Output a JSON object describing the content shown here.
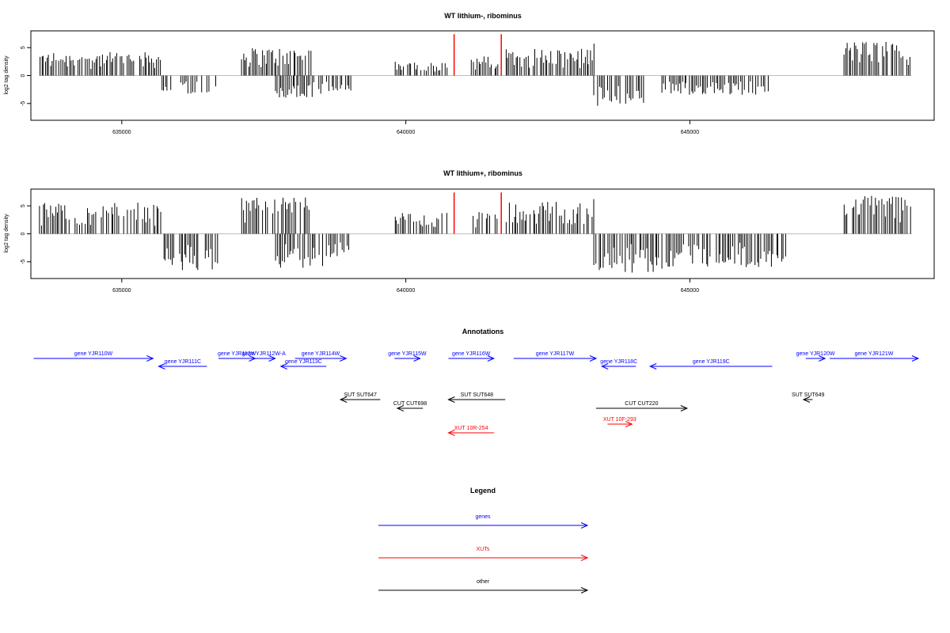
{
  "chart_data": [
    {
      "type": "bar",
      "title": "WT lithium-, ribominus",
      "ylabel": "log2 tag density",
      "xlabel": "",
      "xlim": [
        633400,
        649300
      ],
      "ylim": [
        -8,
        8
      ],
      "x_ticks": [
        "635000",
        "640000",
        "645000"
      ],
      "x_tick_values": [
        635000,
        640000,
        645000
      ],
      "y_ticks": [
        "-5",
        "0",
        "5"
      ],
      "y_tick_values": [
        -5,
        0,
        5
      ],
      "highlight_color": "#ff0000",
      "highlight_positions": [
        640850,
        641680
      ],
      "highlight_height": 7.4,
      "plus_strand_regions": [
        {
          "start": 633550,
          "end": 635700,
          "max": 4.2
        },
        {
          "start": 637100,
          "end": 638350,
          "max": 5.0
        },
        {
          "start": 639800,
          "end": 640750,
          "max": 2.5
        },
        {
          "start": 641150,
          "end": 641650,
          "max": 3.5
        },
        {
          "start": 641750,
          "end": 643300,
          "max": 4.8
        },
        {
          "start": 643300,
          "end": 643320,
          "max": 6.8
        },
        {
          "start": 647700,
          "end": 648900,
          "max": 6.2
        }
      ],
      "minus_strand_regions": [
        {
          "start": 635700,
          "end": 636700,
          "max": 3.5
        },
        {
          "start": 637700,
          "end": 638550,
          "max": 4.0
        },
        {
          "start": 638600,
          "end": 639050,
          "max": 3.0
        },
        {
          "start": 643300,
          "end": 644200,
          "max": 5.5
        },
        {
          "start": 644500,
          "end": 646400,
          "max": 3.5
        }
      ]
    },
    {
      "type": "bar",
      "title": "WT lithium+, ribominus",
      "ylabel": "log2 tag density",
      "xlabel": "",
      "xlim": [
        633400,
        649300
      ],
      "ylim": [
        -8,
        8
      ],
      "x_ticks": [
        "635000",
        "640000",
        "645000"
      ],
      "x_tick_values": [
        635000,
        640000,
        645000
      ],
      "y_ticks": [
        "-5",
        "0",
        "5"
      ],
      "y_tick_values": [
        -5,
        0,
        5
      ],
      "highlight_color": "#ff0000",
      "highlight_positions": [
        640850,
        641680
      ],
      "highlight_height": 7.4,
      "plus_strand_regions": [
        {
          "start": 633550,
          "end": 635700,
          "max": 5.6
        },
        {
          "start": 637100,
          "end": 638350,
          "max": 6.8
        },
        {
          "start": 639800,
          "end": 640750,
          "max": 3.8
        },
        {
          "start": 641150,
          "end": 641650,
          "max": 4.0
        },
        {
          "start": 641750,
          "end": 643300,
          "max": 5.8
        },
        {
          "start": 643300,
          "end": 643320,
          "max": 7.3
        },
        {
          "start": 647700,
          "end": 648900,
          "max": 7.0
        }
      ],
      "minus_strand_regions": [
        {
          "start": 635700,
          "end": 636700,
          "max": 6.5
        },
        {
          "start": 637700,
          "end": 638550,
          "max": 6.5
        },
        {
          "start": 638600,
          "end": 639050,
          "max": 4.5
        },
        {
          "start": 643300,
          "end": 644600,
          "max": 7.0
        },
        {
          "start": 644600,
          "end": 646700,
          "max": 6.0
        }
      ]
    }
  ],
  "annotations": {
    "title": "Annotations",
    "features": [
      {
        "label": "gene YJR110W",
        "start": 633450,
        "end": 635550,
        "direction": "right",
        "type": "gene",
        "lane": 0
      },
      {
        "label": "gene YJR111C",
        "start": 635650,
        "end": 636500,
        "direction": "left",
        "type": "gene",
        "lane": 1
      },
      {
        "label": "gene YJR112W",
        "start": 636700,
        "end": 637350,
        "direction": "right",
        "type": "gene",
        "lane": 0
      },
      {
        "label": "gene YJR112W-A",
        "start": 637300,
        "end": 637700,
        "direction": "right",
        "type": "gene",
        "lane": 0
      },
      {
        "label": "gene YJR113C",
        "start": 637800,
        "end": 638600,
        "direction": "left",
        "type": "gene",
        "lane": 1
      },
      {
        "label": "gene YJR114W",
        "start": 638050,
        "end": 638950,
        "direction": "right",
        "type": "gene",
        "lane": 0
      },
      {
        "label": "gene YJR115W",
        "start": 639800,
        "end": 640250,
        "direction": "right",
        "type": "gene",
        "lane": 0
      },
      {
        "label": "gene YJR116W",
        "start": 640750,
        "end": 641550,
        "direction": "right",
        "type": "gene",
        "lane": 0
      },
      {
        "label": "gene YJR117W",
        "start": 641900,
        "end": 643350,
        "direction": "right",
        "type": "gene",
        "lane": 0
      },
      {
        "label": "gene YJR118C",
        "start": 643450,
        "end": 644050,
        "direction": "left",
        "type": "gene",
        "lane": 1
      },
      {
        "label": "gene YJR119C",
        "start": 644300,
        "end": 646450,
        "direction": "left",
        "type": "gene",
        "lane": 1
      },
      {
        "label": "gene YJR120W",
        "start": 647040,
        "end": 647380,
        "direction": "right",
        "type": "gene",
        "lane": 0
      },
      {
        "label": "gene YJR121W",
        "start": 647460,
        "end": 649020,
        "direction": "right",
        "type": "gene",
        "lane": 0
      },
      {
        "label": "SUT SUT647",
        "start": 638850,
        "end": 639550,
        "direction": "left",
        "type": "other",
        "lane": 3
      },
      {
        "label": "SUT SUT648",
        "start": 640750,
        "end": 641750,
        "direction": "left",
        "type": "other",
        "lane": 3
      },
      {
        "label": "SUT SUT649",
        "start": 647000,
        "end": 647160,
        "direction": "left",
        "type": "other",
        "lane": 3
      },
      {
        "label": "CUT CUT698",
        "start": 639850,
        "end": 640300,
        "direction": "left",
        "type": "other",
        "lane": 4
      },
      {
        "label": "CUT CUT220",
        "start": 643350,
        "end": 644950,
        "direction": "right",
        "type": "other",
        "lane": 4
      },
      {
        "label": "XUT 10R-254",
        "start": 640750,
        "end": 641550,
        "direction": "left",
        "type": "xut",
        "lane": 6
      },
      {
        "label": "XUT 10F-293",
        "start": 643550,
        "end": 643980,
        "direction": "right",
        "type": "xut",
        "lane": 5
      }
    ]
  },
  "legend": {
    "title": "Legend",
    "items": [
      {
        "label": "genes",
        "color": "#0000ff"
      },
      {
        "label": "XUTs",
        "color": "#ff0000"
      },
      {
        "label": "other",
        "color": "#000000"
      }
    ]
  },
  "colors": {
    "gene": "#0000ff",
    "xut": "#ff0000",
    "other": "#000000",
    "bars": "#000000",
    "baseline": "#bebebe"
  }
}
